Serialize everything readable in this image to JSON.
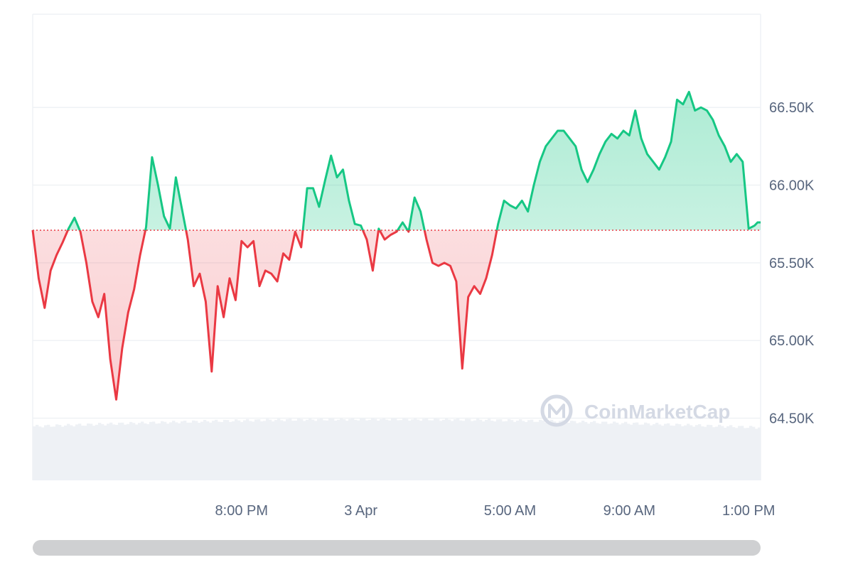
{
  "colors": {
    "up": "#16c784",
    "down": "#ea3943",
    "baseline": "#ea3943",
    "grid": "#eff2f5",
    "volume": "#eef1f5",
    "axis_text": "#58667e",
    "scrollbar": "#cfd0d2"
  },
  "watermark": {
    "text": "CoinMarketCap",
    "icon": "coinmarketcap-logo-icon"
  },
  "chart_data": {
    "type": "area",
    "y_axis_side": "right",
    "ylim": [
      64100,
      67100
    ],
    "y_ticks": [
      {
        "value": 64500,
        "label": "64.50K"
      },
      {
        "value": 65000,
        "label": "65.00K"
      },
      {
        "value": 65500,
        "label": "65.50K"
      },
      {
        "value": 66000,
        "label": "66.00K"
      },
      {
        "value": 66500,
        "label": "66.50K"
      }
    ],
    "x_ticks": [
      "8:00 PM",
      "3 Apr",
      "5:00 AM",
      "9:00 AM",
      "1:00 PM"
    ],
    "x_tick_hours": [
      -5,
      -1,
      4,
      8,
      12
    ],
    "xlim_hours": [
      -12,
      12.4
    ],
    "baseline": 65710,
    "grid": true,
    "legend": "none",
    "series": [
      {
        "x_hours": [
          -12.0,
          -11.8,
          -11.6,
          -11.4,
          -11.2,
          -11.0,
          -10.8,
          -10.6,
          -10.4,
          -10.2,
          -10.0,
          -9.8,
          -9.6,
          -9.4,
          -9.2,
          -9.0,
          -8.8,
          -8.6,
          -8.4,
          -8.2,
          -8.0,
          -7.8,
          -7.6,
          -7.4,
          -7.2,
          -7.0,
          -6.8,
          -6.6,
          -6.4,
          -6.2,
          -6.0,
          -5.8,
          -5.6,
          -5.4,
          -5.2,
          -5.0,
          -4.8,
          -4.6,
          -4.4,
          -4.2,
          -4.0,
          -3.8,
          -3.6,
          -3.4,
          -3.2,
          -3.0,
          -2.8,
          -2.6,
          -2.4,
          -2.2,
          -2.0,
          -1.8,
          -1.6,
          -1.4,
          -1.2,
          -1.0,
          -0.8,
          -0.6,
          -0.4,
          -0.2,
          0.0,
          0.2,
          0.4,
          0.6,
          0.8,
          1.0,
          1.2,
          1.4,
          1.6,
          1.8,
          2.0,
          2.2,
          2.4,
          2.6,
          2.8,
          3.0,
          3.2,
          3.4,
          3.6,
          3.8,
          4.0,
          4.2,
          4.4,
          4.6,
          4.8,
          5.0,
          5.2,
          5.4,
          5.6,
          5.8,
          6.0,
          6.2,
          6.4,
          6.6,
          6.8,
          7.0,
          7.2,
          7.4,
          7.6,
          7.8,
          8.0,
          8.2,
          8.4,
          8.6,
          8.8,
          9.0,
          9.2,
          9.4,
          9.6,
          9.8,
          10.0,
          10.2,
          10.4,
          10.6,
          10.8,
          11.0,
          11.2,
          11.4,
          11.6,
          11.8,
          12.0,
          12.2,
          12.3,
          12.4
        ],
        "values": [
          65710,
          65400,
          65210,
          65450,
          65550,
          65630,
          65720,
          65790,
          65700,
          65500,
          65250,
          65150,
          65300,
          64880,
          64620,
          64950,
          65180,
          65330,
          65550,
          65730,
          66180,
          66000,
          65800,
          65720,
          66050,
          65850,
          65650,
          65350,
          65430,
          65250,
          64800,
          65350,
          65150,
          65400,
          65260,
          65640,
          65600,
          65640,
          65350,
          65450,
          65430,
          65380,
          65560,
          65520,
          65700,
          65600,
          65980,
          65980,
          65860,
          66030,
          66190,
          66050,
          66100,
          65900,
          65750,
          65740,
          65650,
          65450,
          65720,
          65650,
          65680,
          65700,
          65760,
          65700,
          65920,
          65830,
          65650,
          65500,
          65480,
          65500,
          65480,
          65380,
          64820,
          65280,
          65350,
          65300,
          65400,
          65550,
          65750,
          65900,
          65870,
          65850,
          65900,
          65830,
          66000,
          66150,
          66250,
          66300,
          66350,
          66350,
          66300,
          66250,
          66100,
          66020,
          66100,
          66200,
          66280,
          66330,
          66300,
          66350,
          66320,
          66480,
          66300,
          66200,
          66150,
          66100,
          66180,
          66280,
          66550,
          66520,
          66600,
          66480,
          66500,
          66480,
          66420,
          66320,
          66250,
          66150,
          66200,
          66150,
          65720,
          65740,
          65760,
          65760
        ]
      }
    ],
    "volume_note": "grey volume histogram along the bottom, unlabeled"
  }
}
